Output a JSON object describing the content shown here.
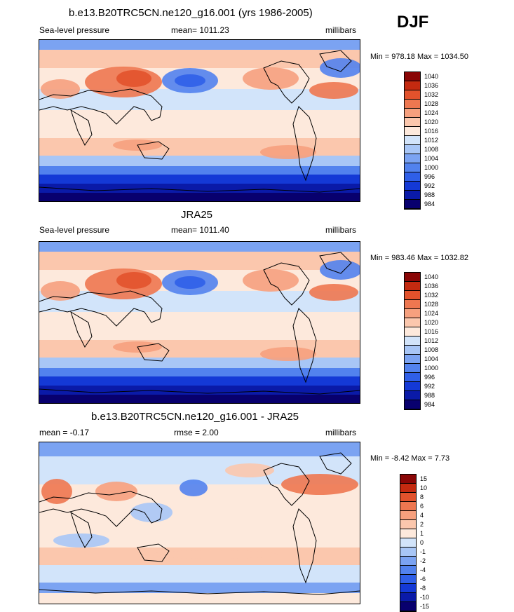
{
  "season": "DJF",
  "palette_full": [
    "#08006e",
    "#0a1aa8",
    "#1439d6",
    "#2f5fe8",
    "#5282ee",
    "#7ba3f2",
    "#a8c6f6",
    "#d2e4fa",
    "#fde9dc",
    "#fbc7ad",
    "#f6a07e",
    "#ee7750",
    "#e2522c",
    "#c42a10",
    "#8a0606"
  ],
  "palette_diff": [
    "#08006e",
    "#0a1aa8",
    "#1439d6",
    "#2f5fe8",
    "#5282ee",
    "#7ba3f2",
    "#a8c6f6",
    "#d2e4fa",
    "#fde9dc",
    "#fbc7ad",
    "#f6a07e",
    "#ee7750",
    "#e2522c",
    "#c42a10",
    "#8a0606"
  ],
  "chart_data": [
    {
      "type": "heatmap",
      "title": "b.e13.B20TRC5CN.ne120_g16.001 (yrs 1986-2005)",
      "left_label": "Sea-level pressure",
      "mean_label": "mean= 1011.23",
      "units": "millibars",
      "minmax": "Min = 978.18 Max = 1034.50",
      "colorbar_levels": [
        "1040",
        "1036",
        "1032",
        "1028",
        "1024",
        "1020",
        "1016",
        "1012",
        "1008",
        "1004",
        "1000",
        "996",
        "992",
        "988",
        "984"
      ]
    },
    {
      "type": "heatmap",
      "title": "JRA25",
      "left_label": "Sea-level pressure",
      "mean_label": "mean= 1011.40",
      "units": "millibars",
      "minmax": "Min = 983.46 Max = 1032.82",
      "colorbar_levels": [
        "1040",
        "1036",
        "1032",
        "1028",
        "1024",
        "1020",
        "1016",
        "1012",
        "1008",
        "1004",
        "1000",
        "996",
        "992",
        "988",
        "984"
      ]
    },
    {
      "type": "heatmap",
      "title": "b.e13.B20TRC5CN.ne120_g16.001 - JRA25",
      "left_label": "mean =  -0.17",
      "mean_label": "rmse =   2.00",
      "units": "millibars",
      "minmax": "Min =  -8.42 Max =   7.73",
      "colorbar_levels": [
        "15",
        "10",
        "8",
        "6",
        "4",
        "2",
        "1",
        "0",
        "-1",
        "-2",
        "-4",
        "-6",
        "-8",
        "-10",
        "-15"
      ]
    }
  ]
}
